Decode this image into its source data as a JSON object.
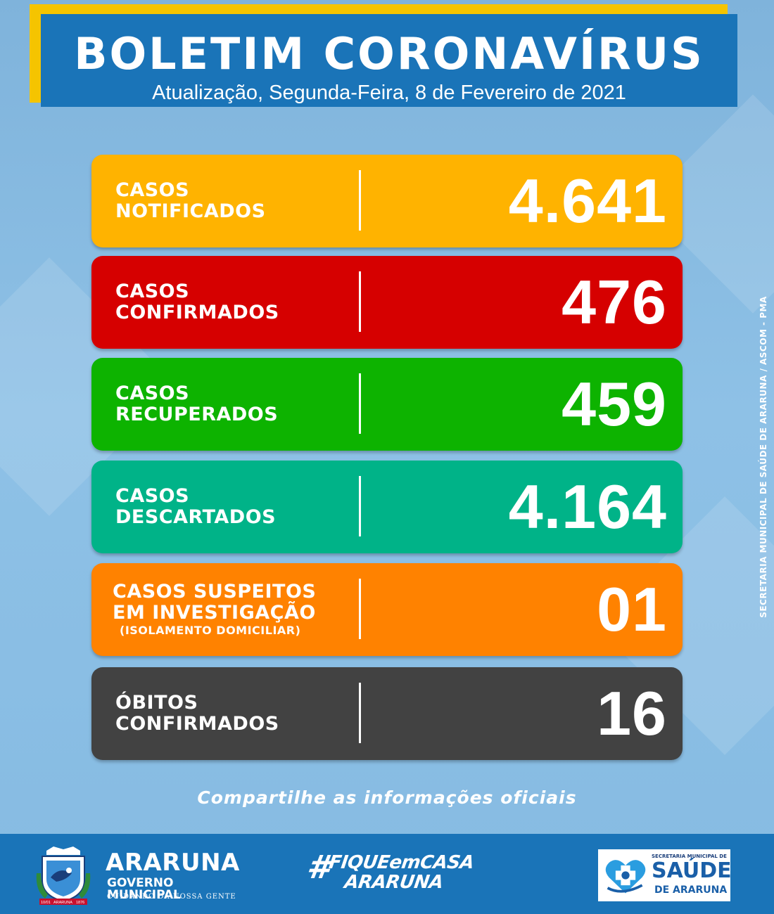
{
  "header": {
    "title": "BOLETIM CORONAVÍRUS",
    "subtitle": "Atualização, Segunda-Feira, 8 de Fevereiro de 2021"
  },
  "cards": [
    {
      "line1": "CASOS",
      "line2": "NOTIFICADOS",
      "note": "",
      "value": "4.641",
      "color": "#ffb300"
    },
    {
      "line1": "CASOS",
      "line2": "CONFIRMADOS",
      "note": "",
      "value": "476",
      "color": "#d60000"
    },
    {
      "line1": "CASOS",
      "line2": "RECUPERADOS",
      "note": "",
      "value": "459",
      "color": "#0db300"
    },
    {
      "line1": "CASOS",
      "line2": "DESCARTADOS",
      "note": "",
      "value": "4.164",
      "color": "#00b388"
    },
    {
      "line1": "CASOS SUSPEITOS",
      "line2": "EM INVESTIGAÇÃO",
      "note": "(ISOLAMENTO DOMICILIAR)",
      "value": "01",
      "color": "#ff8200"
    },
    {
      "line1": "ÓBITOS",
      "line2": "CONFIRMADOS",
      "note": "",
      "value": "16",
      "color": "#424242"
    }
  ],
  "side_credit": "SECRETARIA MUNICIPAL DE SAÚDE DE ARARUNA / ASCOM - PMA",
  "share_text": "Compartilhe as informações oficiais",
  "footer": {
    "city_name": "ARARUNA",
    "government": "GOVERNO MUNICIPAL",
    "motto": "CUIDANDO DA NOSSA GENTE",
    "crest_year_left": "10/01",
    "crest_city": "ARARUNA",
    "crest_year_right": "1876",
    "hashtag_symbol": "#",
    "hashtag_line1": "FIQUEemCASA",
    "hashtag_line2": "ARARUNA",
    "health_top": "SECRETARIA MUNICIPAL DE",
    "health_main": "SAÚDE",
    "health_bottom": "DE ARARUNA"
  },
  "colors": {
    "header_blue": "#1a74b8",
    "header_accent": "#f5c400",
    "background": "#86bbe2"
  }
}
